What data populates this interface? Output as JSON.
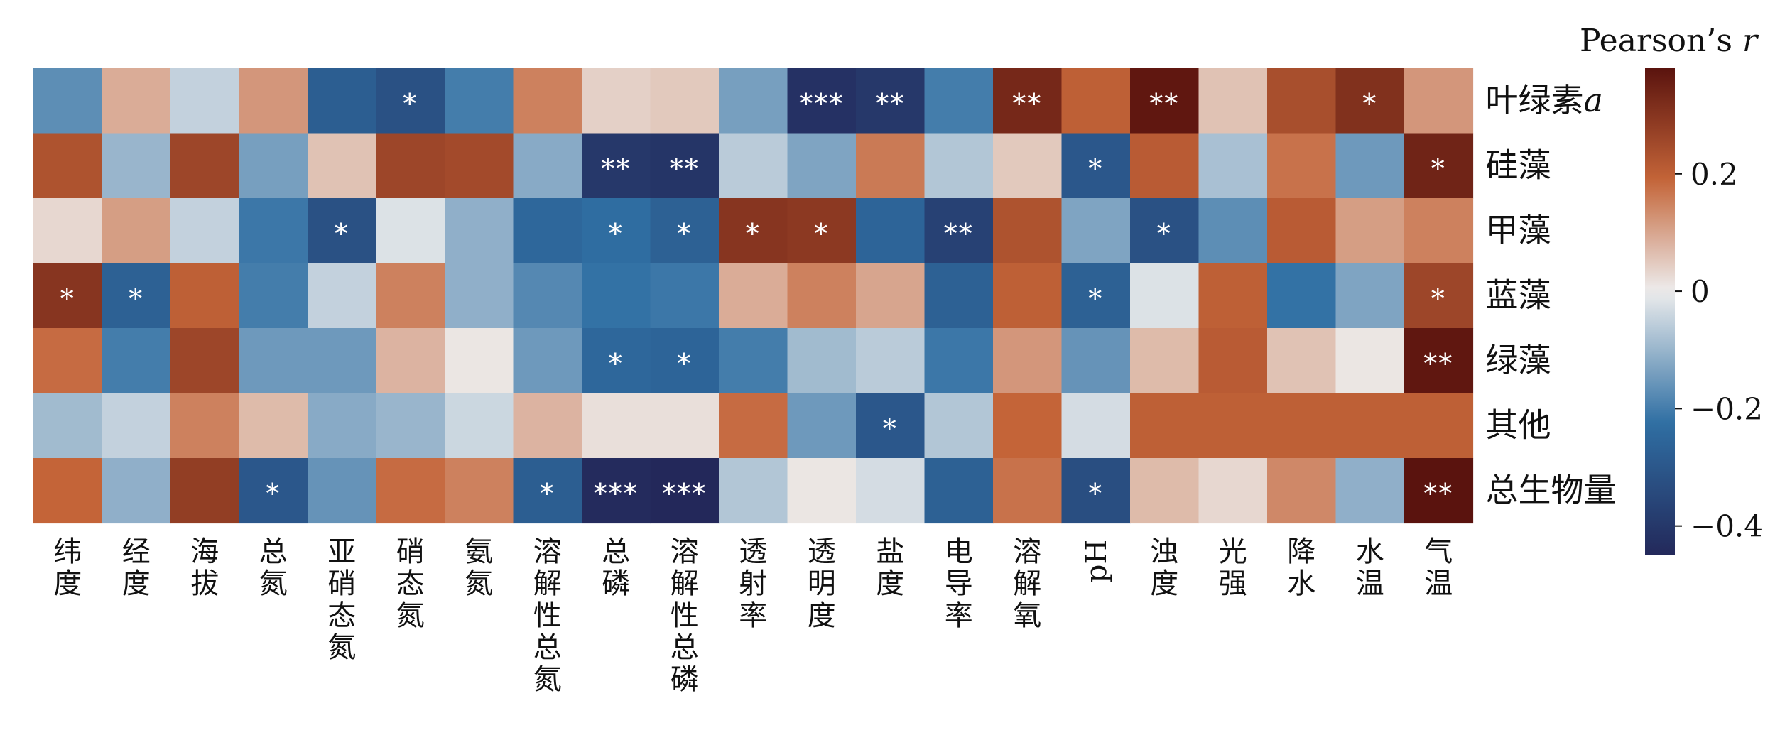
{
  "chart_data": {
    "type": "heatmap",
    "title": "",
    "xlabel": "",
    "ylabel": "",
    "x_categories": [
      "纬度",
      "经度",
      "海拔",
      "总氮",
      "亚硝态氮",
      "硝态氮",
      "氨氮",
      "溶解性总氮",
      "总磷",
      "溶解性总磷",
      "透射率",
      "透明度",
      "盐度",
      "电导率",
      "溶解氧",
      "pH",
      "浊度",
      "光强",
      "降水",
      "水温",
      "气温"
    ],
    "y_categories": [
      "叶绿素a",
      "硅藻",
      "甲藻",
      "蓝藻",
      "绿藻",
      "其他",
      "总生物量"
    ],
    "values": [
      [
        -0.17,
        0.09,
        -0.05,
        0.12,
        -0.28,
        -0.32,
        -0.2,
        0.15,
        0.04,
        0.05,
        -0.14,
        -0.42,
        -0.4,
        -0.2,
        0.33,
        0.2,
        0.37,
        0.06,
        0.24,
        0.31,
        0.12
      ],
      [
        0.23,
        -0.1,
        0.26,
        -0.14,
        0.06,
        0.26,
        0.25,
        -0.12,
        -0.4,
        -0.41,
        -0.06,
        -0.13,
        0.16,
        -0.07,
        0.05,
        -0.3,
        0.21,
        -0.08,
        0.17,
        -0.15,
        0.34
      ],
      [
        0.03,
        0.11,
        -0.05,
        -0.21,
        -0.32,
        -0.02,
        -0.11,
        -0.25,
        -0.23,
        -0.27,
        0.3,
        0.29,
        -0.26,
        -0.37,
        0.23,
        -0.13,
        -0.32,
        -0.17,
        0.21,
        0.11,
        0.15
      ],
      [
        0.3,
        -0.27,
        0.2,
        -0.2,
        -0.05,
        0.15,
        -0.11,
        -0.18,
        -0.22,
        -0.21,
        0.09,
        0.15,
        0.1,
        -0.27,
        0.2,
        -0.27,
        -0.02,
        0.2,
        -0.22,
        -0.13,
        0.26
      ],
      [
        0.18,
        -0.2,
        0.26,
        -0.15,
        -0.15,
        0.08,
        0.01,
        -0.15,
        -0.25,
        -0.26,
        -0.2,
        -0.09,
        -0.06,
        -0.21,
        0.12,
        -0.16,
        0.07,
        0.21,
        0.06,
        0.01,
        0.37
      ],
      [
        -0.09,
        -0.05,
        0.15,
        0.07,
        -0.12,
        -0.1,
        -0.04,
        0.08,
        0.02,
        0.02,
        0.18,
        -0.15,
        -0.3,
        -0.07,
        0.19,
        -0.03,
        0.2,
        0.2,
        0.2,
        0.2,
        0.2
      ],
      [
        0.19,
        -0.11,
        0.28,
        -0.3,
        -0.16,
        0.18,
        0.15,
        -0.28,
        -0.44,
        -0.45,
        -0.07,
        0.01,
        -0.03,
        -0.27,
        0.17,
        -0.33,
        0.07,
        0.03,
        0.14,
        -0.11,
        0.38
      ]
    ],
    "significance": [
      [
        "",
        "",
        "",
        "",
        "",
        "*",
        "",
        "",
        "",
        "",
        "",
        "***",
        "**",
        "",
        "**",
        "",
        "**",
        "",
        "",
        "*",
        ""
      ],
      [
        "",
        "",
        "",
        "",
        "",
        "",
        "",
        "",
        "**",
        "**",
        "",
        "",
        "",
        "",
        "",
        "*",
        "",
        "",
        "",
        "",
        "*"
      ],
      [
        "",
        "",
        "",
        "",
        "*",
        "",
        "",
        "",
        "*",
        "*",
        "*",
        "*",
        "",
        "**",
        "",
        "",
        "*",
        "",
        "",
        "",
        ""
      ],
      [
        "*",
        "*",
        "",
        "",
        "",
        "",
        "",
        "",
        "",
        "",
        "",
        "",
        "",
        "",
        "",
        "*",
        "",
        "",
        "",
        "",
        "*"
      ],
      [
        "",
        "",
        "",
        "",
        "",
        "",
        "",
        "",
        "*",
        "*",
        "",
        "",
        "",
        "",
        "",
        "",
        "",
        "",
        "",
        "",
        "**"
      ],
      [
        "",
        "",
        "",
        "",
        "",
        "",
        "",
        "",
        "",
        "",
        "",
        "",
        "*",
        "",
        "",
        "",
        "",
        "",
        "",
        "",
        ""
      ],
      [
        "",
        "",
        "",
        "*",
        "",
        "",
        "",
        "*",
        "***",
        "***",
        "",
        "",
        "",
        "",
        "",
        "*",
        "",
        "",
        "",
        "",
        "**"
      ]
    ],
    "colorbar": {
      "label": "Pearson’s r",
      "min": -0.45,
      "max": 0.38,
      "ticks": [
        0.2,
        0,
        -0.2,
        -0.4
      ],
      "tick_labels": [
        "0.2",
        "0",
        "−0.2",
        "−0.4"
      ]
    },
    "colormap": {
      "negative_end": "#23285a",
      "neg_mid": "#2f6fa3",
      "neutral": "#ededed",
      "pos_mid": "#c46438",
      "positive_end": "#5a130e"
    }
  }
}
